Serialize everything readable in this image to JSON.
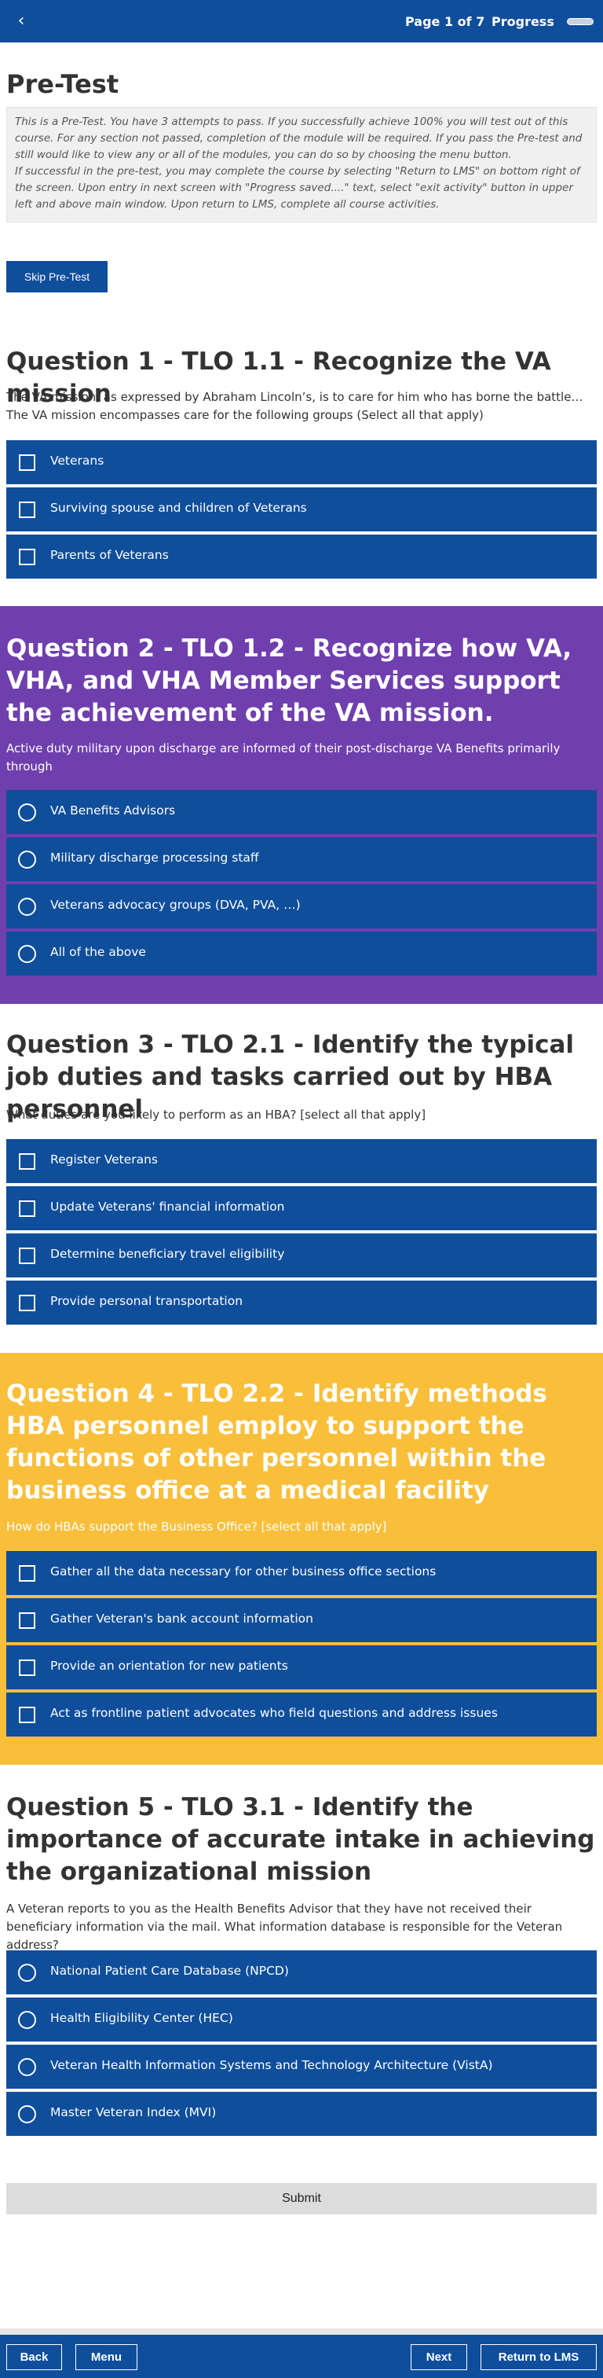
{
  "header": {
    "back_icon": "chevron-left-icon",
    "page_indicator": "Page 1 of 7",
    "progress_label": "Progress",
    "progress_fraction": 0.0
  },
  "intro": {
    "title": "Pre-Test",
    "instructions_1": "This is a Pre-Test. You have 3 attempts to pass. If you successfully achieve 100% you will test out of this course. For any section not passed, completion of the module will be required. If you pass the Pre-test and still would like to view any or all of the modules, you can do so by choosing the menu button.",
    "instructions_2": "If successful in the pre-test, you may complete the course by selecting \"Return to LMS\" on bottom right of the screen. Upon entry in next screen with \"Progress saved....\" text, select \"exit activity\" button in upper left and above main window. Upon return to LMS, complete all course activities.",
    "skip_label": "Skip Pre-Test"
  },
  "questions": [
    {
      "title": "Question 1 - TLO 1.1 - Recognize the VA mission",
      "prompt": "The VA mission, as expressed by Abraham Lincoln’s, is to care for him who has borne the battle… The VA mission encompasses care for the following groups (Select all that apply)",
      "input_type": "checkbox",
      "options": [
        "Veterans",
        "Surviving spouse and children of Veterans",
        "Parents of Veterans"
      ]
    },
    {
      "title": "Question 2 - TLO 1.2 - Recognize how VA, VHA, and VHA Member Services support the achievement of the VA mission.",
      "prompt": "Active duty military upon discharge are informed of their post-discharge VA Benefits primarily through",
      "input_type": "radio",
      "options": [
        "VA Benefits Advisors",
        "Military discharge processing staff",
        "Veterans advocacy groups (DVA, PVA, …)",
        "All of the above"
      ]
    },
    {
      "title": "Question 3 - TLO 2.1 - Identify the typical job duties and tasks carried out by HBA personnel",
      "prompt": "What duties are you likely to perform as an HBA? [select all that apply]",
      "input_type": "checkbox",
      "options": [
        "Register Veterans",
        "Update Veterans' financial information",
        "Determine beneficiary travel eligibility",
        "Provide personal transportation"
      ]
    },
    {
      "title": "Question 4 - TLO 2.2 - Identify methods HBA personnel employ to support the functions of other personnel within the business office at a medical facility",
      "prompt": "How do HBAs support the Business Office? [select all that apply]",
      "input_type": "checkbox",
      "options": [
        "Gather all the data necessary for other business office sections",
        "Gather Veteran's bank account information",
        "Provide an orientation for new patients",
        "Act as frontline patient advocates who field questions and address issues"
      ]
    },
    {
      "title": "Question 5 - TLO 3.1 - Identify the importance of accurate intake in achieving the organizational mission",
      "prompt": "A Veteran reports to you as the Health Benefits Advisor that they have not received their beneficiary information via the mail. What information database is responsible for the Veteran address?",
      "input_type": "radio",
      "options": [
        "National Patient Care Database (NPCD)",
        "Health Eligibility Center (HEC)",
        "Veteran Health Information Systems and Technology Architecture (VistA)",
        "Master Veteran Index (MVI)"
      ]
    }
  ],
  "submit_label": "Submit",
  "footer": {
    "back_label": "Back",
    "menu_label": "Menu",
    "next_label": "Next",
    "return_label": "Return to LMS"
  },
  "colors": {
    "primary_blue": "#0f4e9b",
    "purple_section": "#6f3fae",
    "yellow_section": "#f9bf3b"
  }
}
